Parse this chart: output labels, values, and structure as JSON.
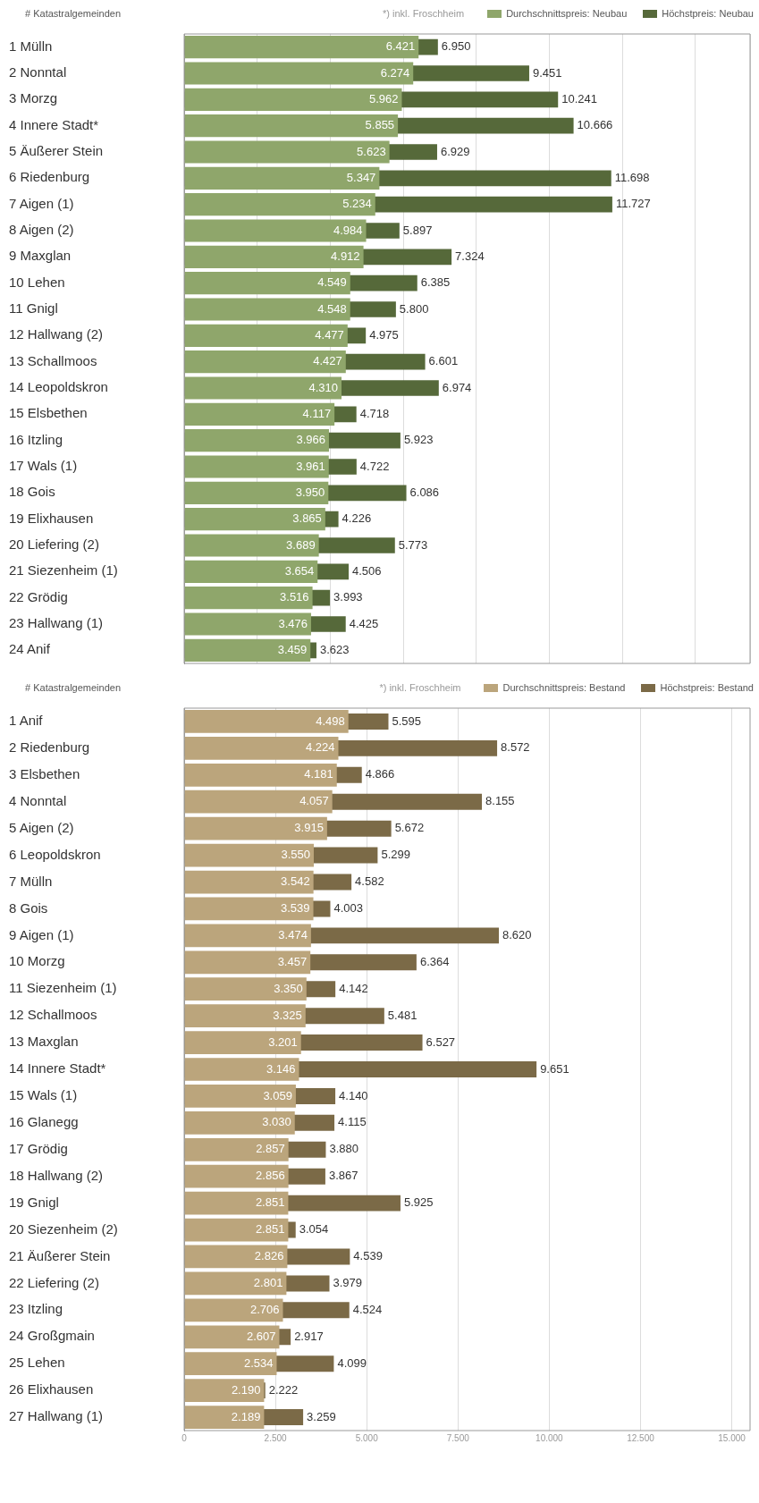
{
  "chart_data": [
    {
      "type": "bar",
      "orientation": "horizontal",
      "ylabel": "# Katastralgemeinden",
      "legend": "top",
      "grid": "x",
      "tick_labels": "y",
      "xlim": [
        0,
        15500
      ],
      "categories": [
        "1 Mülln",
        "2 Nonntal",
        "3 Morzg",
        "4 Innere Stadt*",
        "5 Äußerer Stein",
        "6 Riedenburg",
        "7 Aigen (1)",
        "8 Aigen (2)",
        "9 Maxglan",
        "10 Lehen",
        "11 Gnigl",
        "12 Hallwang (2)",
        "13 Schallmoos",
        "14 Leopoldskron",
        "15 Elsbethen",
        "16 Itzling",
        "17 Wals (1)",
        "18 Gois",
        "19 Elixhausen",
        "20 Liefering (2)",
        "21 Siezenheim (1)",
        "22 Grödig",
        "23 Hallwang (1)",
        "24 Anif"
      ],
      "series": [
        {
          "name": "Durchschnittspreis: Neubau",
          "color": "#8fa66b",
          "values": [
            6421,
            6274,
            5962,
            5855,
            5623,
            5347,
            5234,
            4984,
            4912,
            4549,
            4548,
            4477,
            4427,
            4310,
            4117,
            3966,
            3961,
            3950,
            3865,
            3689,
            3654,
            3516,
            3476,
            3459
          ],
          "value_labels": [
            "6.421",
            "6.274",
            "5.962",
            "5.855",
            "5.623",
            "5.347",
            "5.234",
            "4.984",
            "4.912",
            "4.549",
            "4.548",
            "4.477",
            "4.427",
            "4.310",
            "4.117",
            "3.966",
            "3.961",
            "3.950",
            "3.865",
            "3.689",
            "3.654",
            "3.516",
            "3.476",
            "3.459"
          ]
        },
        {
          "name": "Höchstpreis: Neubau",
          "color": "#56693a",
          "values": [
            6950,
            9451,
            10241,
            10666,
            6929,
            11698,
            11727,
            5897,
            7324,
            6385,
            5800,
            4975,
            6601,
            6974,
            4718,
            5923,
            4722,
            6086,
            4226,
            5773,
            4506,
            3993,
            4425,
            3623
          ],
          "value_labels": [
            "6.950",
            "9.451",
            "10.241",
            "10.666",
            "6.929",
            "11.698",
            "11.727",
            "5.897",
            "7.324",
            "6.385",
            "5.800",
            "4.975",
            "6.601",
            "6.974",
            "4.718",
            "5.923",
            "4.722",
            "6.086",
            "4.226",
            "5.773",
            "4.506",
            "3.993",
            "4.425",
            "3.623"
          ]
        }
      ],
      "annotations": [
        "*) inkl. Froschheim"
      ]
    },
    {
      "type": "bar",
      "orientation": "horizontal",
      "ylabel": "# Katastralgemeinden",
      "legend": "top",
      "grid": "x",
      "xlim": [
        0,
        15500
      ],
      "xticks": [
        0,
        {
          "value": 2500,
          "label": "2.500"
        },
        {
          "value": 5000,
          "label": "5.000"
        },
        {
          "value": 7500,
          "label": "7.500"
        },
        {
          "value": 10000,
          "label": "10.000"
        },
        {
          "value": 12500,
          "label": "12.500"
        },
        {
          "value": 15000,
          "label": "15.000"
        }
      ],
      "categories": [
        "1 Anif",
        "2 Riedenburg",
        "3 Elsbethen",
        "4 Nonntal",
        "5 Aigen (2)",
        "6 Leopoldskron",
        "7 Mülln",
        "8 Gois",
        "9 Aigen (1)",
        "10 Morzg",
        "11 Siezenheim (1)",
        "12 Schallmoos",
        "13 Maxglan",
        "14 Innere Stadt*",
        "15 Wals (1)",
        "16 Glanegg",
        "17 Grödig",
        "18 Hallwang (2)",
        "19 Gnigl",
        "20 Siezenheim (2)",
        "21 Äußerer Stein",
        "22 Liefering (2)",
        "23 Itzling",
        "24 Großgmain",
        "25 Lehen",
        "26 Elixhausen",
        "27 Hallwang (1)"
      ],
      "series": [
        {
          "name": "Durchschnittspreis: Bestand",
          "color": "#bba57c",
          "values": [
            4498,
            4224,
            4181,
            4057,
            3915,
            3550,
            3542,
            3539,
            3474,
            3457,
            3350,
            3325,
            3201,
            3146,
            3059,
            3030,
            2857,
            2856,
            2851,
            2851,
            2826,
            2801,
            2706,
            2607,
            2534,
            2190,
            2189
          ],
          "value_labels": [
            "4.498",
            "4.224",
            "4.181",
            "4.057",
            "3.915",
            "3.550",
            "3.542",
            "3.539",
            "3.474",
            "3.457",
            "3.350",
            "3.325",
            "3.201",
            "3.146",
            "3.059",
            "3.030",
            "2.857",
            "2.856",
            "2.851",
            "2.851",
            "2.826",
            "2.801",
            "2.706",
            "2.607",
            "2.534",
            "2.190",
            "2.189"
          ]
        },
        {
          "name": "Höchstpreis: Bestand",
          "color": "#7b6a47",
          "values": [
            5595,
            8572,
            4866,
            8155,
            5672,
            5299,
            4582,
            4003,
            8620,
            6364,
            4142,
            5481,
            6527,
            9651,
            4140,
            4115,
            3880,
            3867,
            5925,
            3054,
            4539,
            3979,
            4524,
            2917,
            4099,
            2222,
            3259
          ],
          "value_labels": [
            "5.595",
            "8.572",
            "4.866",
            "8.155",
            "5.672",
            "5.299",
            "4.582",
            "4.003",
            "8.620",
            "6.364",
            "4.142",
            "5.481",
            "6.527",
            "9.651",
            "4.140",
            "4.115",
            "3.880",
            "3.867",
            "5.925",
            "3.054",
            "4.539",
            "3.979",
            "4.524",
            "2.917",
            "4.099",
            "2.222",
            "3.259"
          ]
        }
      ],
      "annotations": [
        "*) inkl. Froschheim"
      ]
    }
  ]
}
